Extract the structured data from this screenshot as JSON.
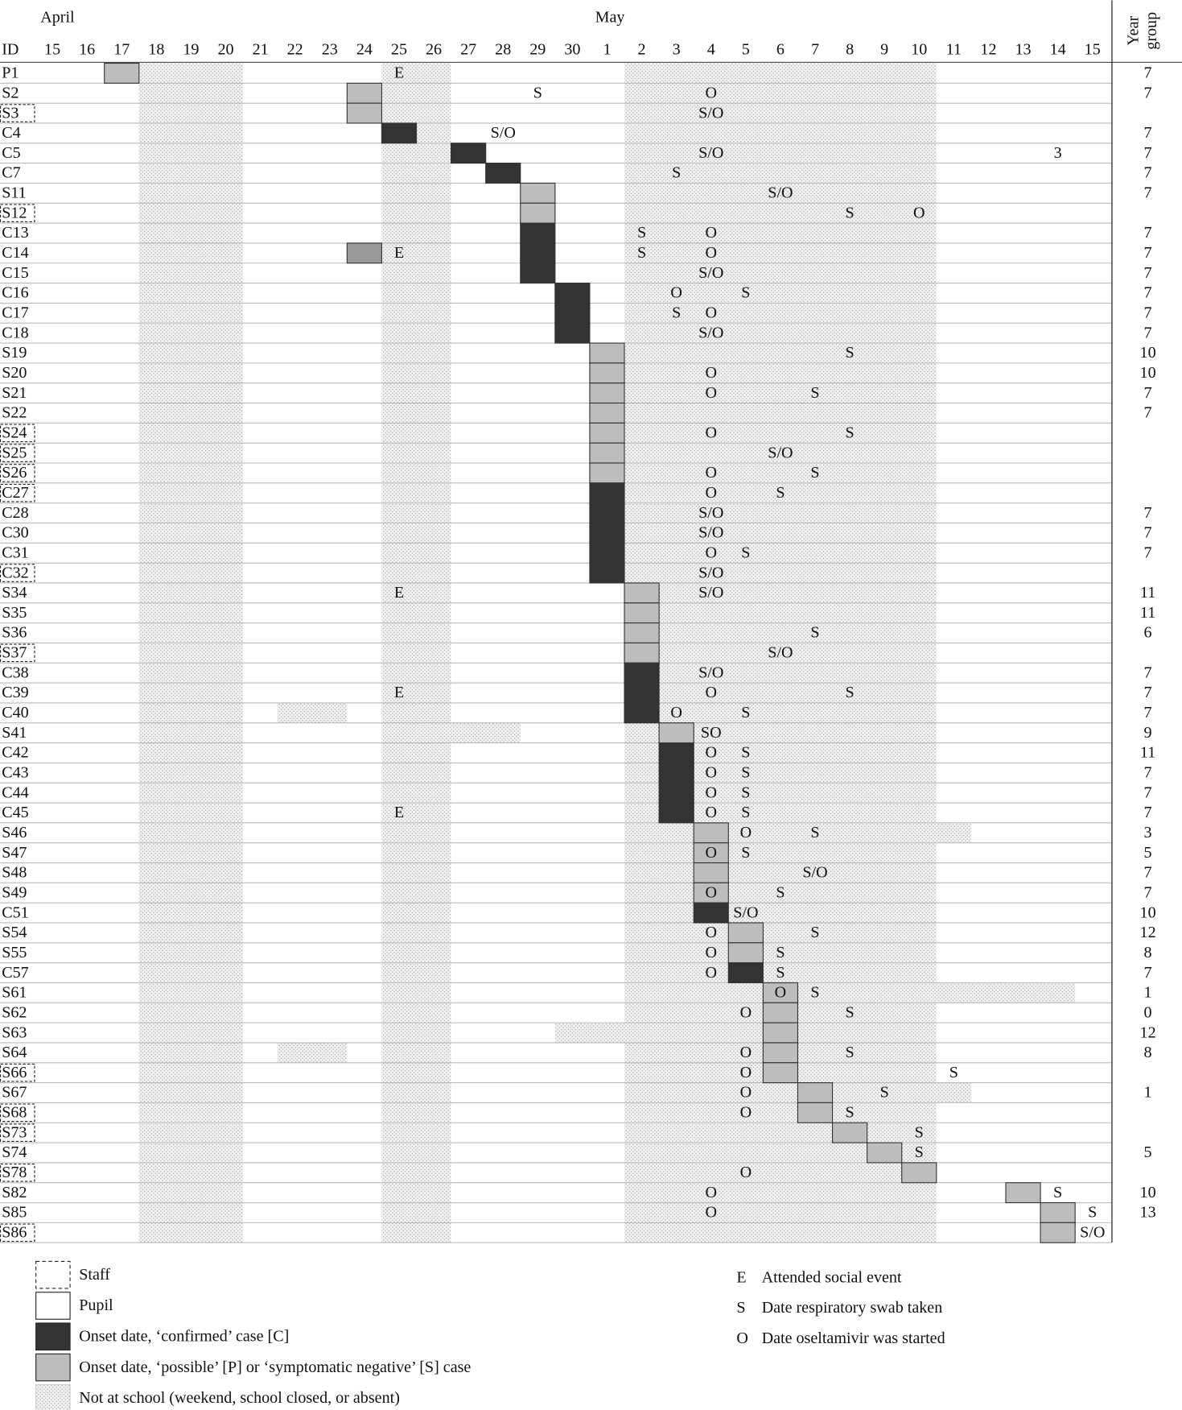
{
  "months": [
    {
      "label": "April",
      "start": 0
    },
    {
      "label": "May",
      "start": 16
    }
  ],
  "id_header": "ID",
  "year_header_lines": [
    "Year",
    "group"
  ],
  "days": [
    "15",
    "16",
    "17",
    "18",
    "19",
    "20",
    "21",
    "22",
    "23",
    "24",
    "25",
    "26",
    "27",
    "28",
    "29",
    "30",
    "1",
    "2",
    "3",
    "4",
    "5",
    "6",
    "7",
    "8",
    "9",
    "10",
    "11",
    "12",
    "13",
    "14",
    "15"
  ],
  "closed_days": [
    3,
    4,
    5,
    10,
    11,
    17,
    18,
    19,
    20,
    21,
    22,
    23,
    24,
    25
  ],
  "rows": [
    {
      "id": "P1",
      "staff": false,
      "onset": 2,
      "case": "possible",
      "events": [
        {
          "day": 10,
          "text": "E"
        }
      ],
      "year": 7
    },
    {
      "id": "S2",
      "staff": false,
      "onset": 9,
      "case": "possible",
      "events": [
        {
          "day": 14,
          "text": "S"
        },
        {
          "day": 19,
          "text": "O"
        }
      ],
      "year": 7
    },
    {
      "id": "S3",
      "staff": true,
      "onset": 9,
      "case": "possible",
      "events": [
        {
          "day": 19,
          "text": "S/O"
        }
      ],
      "year": null
    },
    {
      "id": "C4",
      "staff": false,
      "onset": 10,
      "case": "confirmed",
      "events": [
        {
          "day": 13,
          "text": "S/O"
        }
      ],
      "year": 7
    },
    {
      "id": "C5",
      "staff": false,
      "onset": 12,
      "case": "confirmed",
      "events": [
        {
          "day": 19,
          "text": "S/O"
        },
        {
          "day": 29,
          "text": "3"
        }
      ],
      "year": 7
    },
    {
      "id": "C7",
      "staff": false,
      "onset": 13,
      "case": "confirmed",
      "events": [
        {
          "day": 18,
          "text": "S"
        }
      ],
      "year": 7
    },
    {
      "id": "S11",
      "staff": false,
      "onset": 14,
      "case": "possible",
      "events": [
        {
          "day": 21,
          "text": "S/O"
        }
      ],
      "year": 7
    },
    {
      "id": "S12",
      "staff": true,
      "onset": 14,
      "case": "possible",
      "events": [
        {
          "day": 23,
          "text": "S"
        },
        {
          "day": 25,
          "text": "O"
        }
      ],
      "year": null
    },
    {
      "id": "C13",
      "staff": false,
      "onset": 14,
      "case": "confirmed",
      "events": [
        {
          "day": 17,
          "text": "S"
        },
        {
          "day": 19,
          "text": "O"
        }
      ],
      "year": 7
    },
    {
      "id": "C14",
      "staff": false,
      "onset": 14,
      "case": "confirmed",
      "extra_box": 9,
      "events": [
        {
          "day": 10,
          "text": "E"
        },
        {
          "day": 17,
          "text": "S"
        },
        {
          "day": 19,
          "text": "O"
        }
      ],
      "year": 7
    },
    {
      "id": "C15",
      "staff": false,
      "onset": 14,
      "case": "confirmed",
      "events": [
        {
          "day": 19,
          "text": "S/O"
        }
      ],
      "year": 7
    },
    {
      "id": "C16",
      "staff": false,
      "onset": 15,
      "case": "confirmed",
      "events": [
        {
          "day": 18,
          "text": "O"
        },
        {
          "day": 20,
          "text": "S"
        }
      ],
      "year": 7
    },
    {
      "id": "C17",
      "staff": false,
      "onset": 15,
      "case": "confirmed",
      "events": [
        {
          "day": 18,
          "text": "S"
        },
        {
          "day": 19,
          "text": "O"
        }
      ],
      "year": 7
    },
    {
      "id": "C18",
      "staff": false,
      "onset": 15,
      "case": "confirmed",
      "events": [
        {
          "day": 19,
          "text": "S/O"
        }
      ],
      "year": 7
    },
    {
      "id": "S19",
      "staff": false,
      "onset": 16,
      "case": "possible",
      "events": [
        {
          "day": 23,
          "text": "S"
        }
      ],
      "year": 10
    },
    {
      "id": "S20",
      "staff": false,
      "onset": 16,
      "case": "possible",
      "events": [
        {
          "day": 19,
          "text": "O"
        }
      ],
      "year": 10
    },
    {
      "id": "S21",
      "staff": false,
      "onset": 16,
      "case": "possible",
      "events": [
        {
          "day": 19,
          "text": "O"
        },
        {
          "day": 22,
          "text": "S"
        }
      ],
      "year": 7
    },
    {
      "id": "S22",
      "staff": false,
      "onset": 16,
      "case": "possible",
      "events": [],
      "year": 7
    },
    {
      "id": "S24",
      "staff": true,
      "onset": 16,
      "case": "possible",
      "events": [
        {
          "day": 19,
          "text": "O"
        },
        {
          "day": 23,
          "text": "S"
        }
      ],
      "year": null
    },
    {
      "id": "S25",
      "staff": true,
      "onset": 16,
      "case": "possible",
      "events": [
        {
          "day": 21,
          "text": "S/O"
        }
      ],
      "year": null
    },
    {
      "id": "S26",
      "staff": true,
      "onset": 16,
      "case": "possible",
      "events": [
        {
          "day": 19,
          "text": "O"
        },
        {
          "day": 22,
          "text": "S"
        }
      ],
      "year": null
    },
    {
      "id": "C27",
      "staff": true,
      "onset": 16,
      "case": "confirmed",
      "events": [
        {
          "day": 19,
          "text": "O"
        },
        {
          "day": 21,
          "text": "S"
        }
      ],
      "year": null
    },
    {
      "id": "C28",
      "staff": false,
      "onset": 16,
      "case": "confirmed",
      "events": [
        {
          "day": 19,
          "text": "S/O"
        }
      ],
      "year": 7
    },
    {
      "id": "C30",
      "staff": false,
      "onset": 16,
      "case": "confirmed",
      "events": [
        {
          "day": 19,
          "text": "S/O"
        }
      ],
      "year": 7
    },
    {
      "id": "C31",
      "staff": false,
      "onset": 16,
      "case": "confirmed",
      "events": [
        {
          "day": 19,
          "text": "O"
        },
        {
          "day": 20,
          "text": "S"
        }
      ],
      "year": 7
    },
    {
      "id": "C32",
      "staff": true,
      "onset": 16,
      "case": "confirmed",
      "events": [
        {
          "day": 19,
          "text": "S/O"
        }
      ],
      "year": null
    },
    {
      "id": "S34",
      "staff": false,
      "onset": 17,
      "case": "possible",
      "events": [
        {
          "day": 10,
          "text": "E"
        },
        {
          "day": 19,
          "text": "S/O"
        }
      ],
      "year": 11
    },
    {
      "id": "S35",
      "staff": false,
      "onset": 17,
      "case": "possible",
      "events": [],
      "year": 11
    },
    {
      "id": "S36",
      "staff": false,
      "onset": 17,
      "case": "possible",
      "events": [
        {
          "day": 22,
          "text": "S"
        }
      ],
      "year": 6
    },
    {
      "id": "S37",
      "staff": true,
      "onset": 17,
      "case": "possible",
      "events": [
        {
          "day": 21,
          "text": "S/O"
        }
      ],
      "year": null
    },
    {
      "id": "C38",
      "staff": false,
      "onset": 17,
      "case": "confirmed",
      "events": [
        {
          "day": 19,
          "text": "S/O"
        }
      ],
      "year": 7
    },
    {
      "id": "C39",
      "staff": false,
      "onset": 17,
      "case": "confirmed",
      "events": [
        {
          "day": 10,
          "text": "E"
        },
        {
          "day": 19,
          "text": "O"
        },
        {
          "day": 23,
          "text": "S"
        }
      ],
      "year": 7
    },
    {
      "id": "C40",
      "staff": false,
      "onset": 17,
      "case": "confirmed",
      "absent": [
        7,
        8
      ],
      "events": [
        {
          "day": 18,
          "text": "O"
        },
        {
          "day": 20,
          "text": "S"
        }
      ],
      "year": 7
    },
    {
      "id": "S41",
      "staff": false,
      "onset": 18,
      "case": "possible",
      "absent": [
        12,
        13
      ],
      "events": [
        {
          "day": 19,
          "text": "SO"
        }
      ],
      "year": 9
    },
    {
      "id": "C42",
      "staff": false,
      "onset": 18,
      "case": "confirmed",
      "events": [
        {
          "day": 19,
          "text": "O"
        },
        {
          "day": 20,
          "text": "S"
        }
      ],
      "year": 11
    },
    {
      "id": "C43",
      "staff": false,
      "onset": 18,
      "case": "confirmed",
      "events": [
        {
          "day": 19,
          "text": "O"
        },
        {
          "day": 20,
          "text": "S"
        }
      ],
      "year": 7
    },
    {
      "id": "C44",
      "staff": false,
      "onset": 18,
      "case": "confirmed",
      "events": [
        {
          "day": 19,
          "text": "O"
        },
        {
          "day": 20,
          "text": "S"
        }
      ],
      "year": 7
    },
    {
      "id": "C45",
      "staff": false,
      "onset": 18,
      "case": "confirmed",
      "events": [
        {
          "day": 10,
          "text": "E"
        },
        {
          "day": 19,
          "text": "O"
        },
        {
          "day": 20,
          "text": "S"
        }
      ],
      "year": 7
    },
    {
      "id": "S46",
      "staff": false,
      "onset": 19,
      "case": "possible",
      "absent": [
        26,
        26
      ],
      "events": [
        {
          "day": 20,
          "text": "O"
        },
        {
          "day": 22,
          "text": "S"
        }
      ],
      "year": 3
    },
    {
      "id": "S47",
      "staff": false,
      "onset": 19,
      "case": "possible",
      "events": [
        {
          "day": 19,
          "text": "O"
        },
        {
          "day": 20,
          "text": "S"
        }
      ],
      "year": 5
    },
    {
      "id": "S48",
      "staff": false,
      "onset": 19,
      "case": "possible",
      "events": [
        {
          "day": 22,
          "text": "S/O"
        }
      ],
      "year": 7
    },
    {
      "id": "S49",
      "staff": false,
      "onset": 19,
      "case": "possible",
      "events": [
        {
          "day": 19,
          "text": "O"
        },
        {
          "day": 21,
          "text": "S"
        }
      ],
      "year": 7
    },
    {
      "id": "C51",
      "staff": false,
      "onset": 19,
      "case": "confirmed",
      "events": [
        {
          "day": 20,
          "text": "S/O"
        }
      ],
      "year": 10
    },
    {
      "id": "S54",
      "staff": false,
      "onset": 20,
      "case": "possible",
      "events": [
        {
          "day": 19,
          "text": "O"
        },
        {
          "day": 22,
          "text": "S"
        }
      ],
      "year": 12
    },
    {
      "id": "S55",
      "staff": false,
      "onset": 20,
      "case": "possible",
      "events": [
        {
          "day": 19,
          "text": "O"
        },
        {
          "day": 21,
          "text": "S"
        }
      ],
      "year": 8
    },
    {
      "id": "C57",
      "staff": false,
      "onset": 20,
      "case": "confirmed",
      "events": [
        {
          "day": 19,
          "text": "O"
        },
        {
          "day": 21,
          "text": "S"
        }
      ],
      "year": 7
    },
    {
      "id": "S61",
      "staff": false,
      "onset": 21,
      "case": "possible",
      "absent": [
        26,
        29
      ],
      "events": [
        {
          "day": 21,
          "text": "O"
        },
        {
          "day": 22,
          "text": "S"
        }
      ],
      "year": 1
    },
    {
      "id": "S62",
      "staff": false,
      "onset": 21,
      "case": "possible",
      "events": [
        {
          "day": 20,
          "text": "O"
        },
        {
          "day": 23,
          "text": "S"
        }
      ],
      "year": 0
    },
    {
      "id": "S63",
      "staff": false,
      "onset": 21,
      "case": "possible",
      "absent": [
        15,
        16
      ],
      "events": [],
      "year": 12
    },
    {
      "id": "S64",
      "staff": false,
      "onset": 21,
      "case": "possible",
      "absent": [
        7,
        8
      ],
      "events": [
        {
          "day": 20,
          "text": "O"
        },
        {
          "day": 23,
          "text": "S"
        }
      ],
      "year": 8
    },
    {
      "id": "S66",
      "staff": true,
      "onset": 21,
      "case": "possible",
      "events": [
        {
          "day": 20,
          "text": "O"
        },
        {
          "day": 26,
          "text": "S"
        }
      ],
      "year": null
    },
    {
      "id": "S67",
      "staff": false,
      "onset": 22,
      "case": "possible",
      "absent": [
        26,
        26
      ],
      "events": [
        {
          "day": 20,
          "text": "O"
        },
        {
          "day": 24,
          "text": "S"
        }
      ],
      "year": 1
    },
    {
      "id": "S68",
      "staff": true,
      "onset": 22,
      "case": "possible",
      "events": [
        {
          "day": 20,
          "text": "O"
        },
        {
          "day": 23,
          "text": "S"
        }
      ],
      "year": null
    },
    {
      "id": "S73",
      "staff": true,
      "onset": 23,
      "case": "possible",
      "events": [
        {
          "day": 25,
          "text": "S"
        }
      ],
      "year": null
    },
    {
      "id": "S74",
      "staff": false,
      "onset": 24,
      "case": "possible",
      "events": [
        {
          "day": 25,
          "text": "S"
        }
      ],
      "year": 5
    },
    {
      "id": "S78",
      "staff": true,
      "onset": 25,
      "case": "possible",
      "events": [
        {
          "day": 20,
          "text": "O"
        }
      ],
      "year": null
    },
    {
      "id": "S82",
      "staff": false,
      "onset": 28,
      "case": "possible",
      "events": [
        {
          "day": 19,
          "text": "O"
        },
        {
          "day": 29,
          "text": "S"
        }
      ],
      "year": 10
    },
    {
      "id": "S85",
      "staff": false,
      "onset": 29,
      "case": "possible",
      "events": [
        {
          "day": 19,
          "text": "O"
        },
        {
          "day": 30,
          "text": "S"
        }
      ],
      "year": 13
    },
    {
      "id": "S86",
      "staff": true,
      "onset": 29,
      "case": "possible",
      "events": [
        {
          "day": 30,
          "text": "S/O"
        }
      ],
      "year": null
    }
  ],
  "legend": {
    "staff": "Staff",
    "pupil": "Pupil",
    "confirmed": "Onset date, ‘confirmed’ case [C]",
    "possible": "Onset date, ‘possible’ [P] or ‘symptomatic negative’ [S] case",
    "absent": "Not at school (weekend, school closed, or absent)",
    "letters": [
      {
        "key": "E",
        "text": "Attended social event"
      },
      {
        "key": "S",
        "text": "Date respiratory swab taken"
      },
      {
        "key": "O",
        "text": "Date oseltamivir was started"
      }
    ]
  }
}
